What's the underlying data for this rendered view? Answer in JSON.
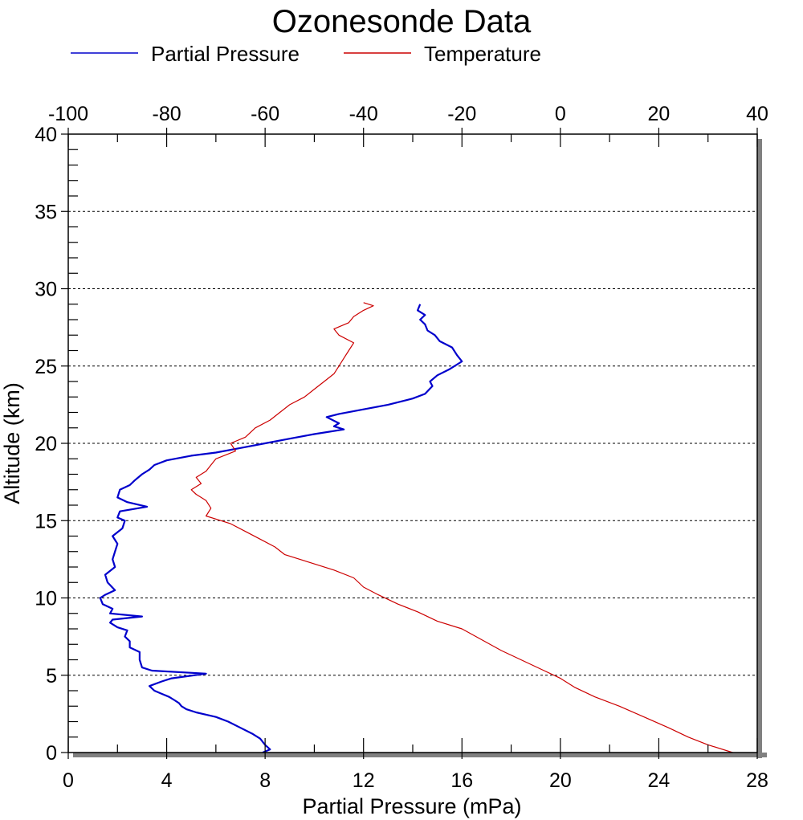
{
  "chart_data": {
    "type": "line",
    "title": "Ozonesonde Data",
    "xlabel": "Partial Pressure (mPa)",
    "ylabel": "Altitude (km)",
    "x_bottom_range": [
      0,
      28
    ],
    "x_bottom_ticks": [
      "0",
      "4",
      "8",
      "12",
      "16",
      "20",
      "24",
      "28"
    ],
    "x_top_range": [
      -100,
      40
    ],
    "x_top_ticks": [
      "-100",
      "-80",
      "-60",
      "-40",
      "-20",
      "0",
      "20",
      "40"
    ],
    "ylim": [
      0,
      40
    ],
    "y_ticks": [
      "0",
      "5",
      "10",
      "15",
      "20",
      "25",
      "30",
      "35",
      "40"
    ],
    "grid": "horizontal dotted lines at major y ticks",
    "legend_placement": "top",
    "series": [
      {
        "name": "Partial Pressure",
        "axis": "bottom",
        "color": "#0000cc",
        "points": [
          [
            7.9,
            0.0
          ],
          [
            8.2,
            0.2
          ],
          [
            8.0,
            0.5
          ],
          [
            7.8,
            0.9
          ],
          [
            7.5,
            1.2
          ],
          [
            7.0,
            1.6
          ],
          [
            6.5,
            2.0
          ],
          [
            6.0,
            2.3
          ],
          [
            5.2,
            2.6
          ],
          [
            4.8,
            2.8
          ],
          [
            4.6,
            3.0
          ],
          [
            4.5,
            3.2
          ],
          [
            4.3,
            3.4
          ],
          [
            4.1,
            3.6
          ],
          [
            3.8,
            3.8
          ],
          [
            3.5,
            4.0
          ],
          [
            3.3,
            4.3
          ],
          [
            3.8,
            4.6
          ],
          [
            4.2,
            4.8
          ],
          [
            5.6,
            5.1
          ],
          [
            3.4,
            5.3
          ],
          [
            3.0,
            5.5
          ],
          [
            2.9,
            6.0
          ],
          [
            2.9,
            6.5
          ],
          [
            2.5,
            6.8
          ],
          [
            2.5,
            7.2
          ],
          [
            2.3,
            7.5
          ],
          [
            2.4,
            7.9
          ],
          [
            2.0,
            8.1
          ],
          [
            1.7,
            8.4
          ],
          [
            1.8,
            8.6
          ],
          [
            3.0,
            8.8
          ],
          [
            1.7,
            9.0
          ],
          [
            1.8,
            9.3
          ],
          [
            1.4,
            9.6
          ],
          [
            1.3,
            10.0
          ],
          [
            1.5,
            10.2
          ],
          [
            1.9,
            10.5
          ],
          [
            1.6,
            11.0
          ],
          [
            1.5,
            11.5
          ],
          [
            1.9,
            12.0
          ],
          [
            1.8,
            12.5
          ],
          [
            1.9,
            13.0
          ],
          [
            2.0,
            13.5
          ],
          [
            1.8,
            14.0
          ],
          [
            2.2,
            14.5
          ],
          [
            2.3,
            15.0
          ],
          [
            2.0,
            15.2
          ],
          [
            2.1,
            15.6
          ],
          [
            3.2,
            15.9
          ],
          [
            2.4,
            16.2
          ],
          [
            2.0,
            16.5
          ],
          [
            2.1,
            17.0
          ],
          [
            2.5,
            17.3
          ],
          [
            2.7,
            17.6
          ],
          [
            3.0,
            18.0
          ],
          [
            3.3,
            18.3
          ],
          [
            3.5,
            18.6
          ],
          [
            4.0,
            18.9
          ],
          [
            5.0,
            19.2
          ],
          [
            6.0,
            19.4
          ],
          [
            7.0,
            19.7
          ],
          [
            8.0,
            20.0
          ],
          [
            9.0,
            20.3
          ],
          [
            10.0,
            20.6
          ],
          [
            11.2,
            20.9
          ],
          [
            10.8,
            21.1
          ],
          [
            11.0,
            21.3
          ],
          [
            10.5,
            21.7
          ],
          [
            11.0,
            21.9
          ],
          [
            12.0,
            22.2
          ],
          [
            13.0,
            22.5
          ],
          [
            14.0,
            22.9
          ],
          [
            14.5,
            23.2
          ],
          [
            14.8,
            23.7
          ],
          [
            14.7,
            24.0
          ],
          [
            15.0,
            24.4
          ],
          [
            15.5,
            24.8
          ],
          [
            16.0,
            25.3
          ],
          [
            15.8,
            25.7
          ],
          [
            15.6,
            26.2
          ],
          [
            15.1,
            26.6
          ],
          [
            14.9,
            27.0
          ],
          [
            14.6,
            27.3
          ],
          [
            14.5,
            27.7
          ],
          [
            14.3,
            28.0
          ],
          [
            14.5,
            28.3
          ],
          [
            14.2,
            28.6
          ],
          [
            14.3,
            29.0
          ]
        ]
      },
      {
        "name": "Temperature",
        "axis": "top",
        "color": "#cc0000",
        "points": [
          [
            35.0,
            0.0
          ],
          [
            30.0,
            0.5
          ],
          [
            26.0,
            1.0
          ],
          [
            22.0,
            1.6
          ],
          [
            17.0,
            2.3
          ],
          [
            12.0,
            3.0
          ],
          [
            7.0,
            3.6
          ],
          [
            3.0,
            4.2
          ],
          [
            0.0,
            4.8
          ],
          [
            -4.0,
            5.4
          ],
          [
            -8.0,
            6.0
          ],
          [
            -12.0,
            6.6
          ],
          [
            -16.0,
            7.3
          ],
          [
            -20.0,
            8.0
          ],
          [
            -25.0,
            8.5
          ],
          [
            -29.0,
            9.1
          ],
          [
            -33.0,
            9.6
          ],
          [
            -37.0,
            10.2
          ],
          [
            -40.0,
            10.7
          ],
          [
            -42.0,
            11.3
          ],
          [
            -46.0,
            11.8
          ],
          [
            -51.0,
            12.3
          ],
          [
            -56.0,
            12.8
          ],
          [
            -58.0,
            13.3
          ],
          [
            -61.0,
            13.8
          ],
          [
            -64.0,
            14.3
          ],
          [
            -67.0,
            14.8
          ],
          [
            -70.0,
            15.1
          ],
          [
            -72.0,
            15.3
          ],
          [
            -71.0,
            15.8
          ],
          [
            -72.0,
            16.3
          ],
          [
            -74.0,
            16.7
          ],
          [
            -75.0,
            17.0
          ],
          [
            -73.0,
            17.4
          ],
          [
            -74.0,
            17.8
          ],
          [
            -72.0,
            18.2
          ],
          [
            -71.0,
            18.6
          ],
          [
            -70.0,
            19.0
          ],
          [
            -66.0,
            19.5
          ],
          [
            -67.0,
            20.0
          ],
          [
            -64.0,
            20.4
          ],
          [
            -62.0,
            21.0
          ],
          [
            -59.0,
            21.5
          ],
          [
            -57.0,
            22.0
          ],
          [
            -55.0,
            22.5
          ],
          [
            -52.0,
            23.0
          ],
          [
            -50.0,
            23.5
          ],
          [
            -48.0,
            24.0
          ],
          [
            -46.0,
            24.5
          ],
          [
            -45.0,
            25.0
          ],
          [
            -44.0,
            25.5
          ],
          [
            -43.0,
            26.0
          ],
          [
            -42.0,
            26.5
          ],
          [
            -45.0,
            27.0
          ],
          [
            -46.0,
            27.4
          ],
          [
            -43.0,
            27.8
          ],
          [
            -42.0,
            28.2
          ],
          [
            -40.0,
            28.6
          ],
          [
            -38.0,
            28.9
          ],
          [
            -40.0,
            29.1
          ]
        ]
      }
    ]
  }
}
